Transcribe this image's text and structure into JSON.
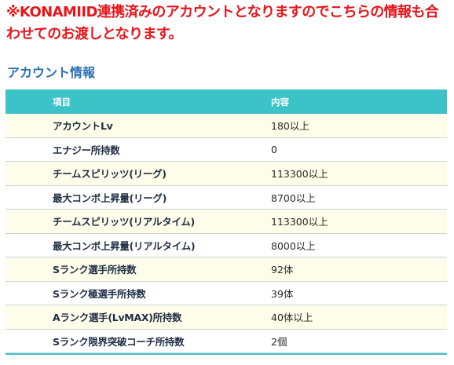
{
  "notice": "※KONAMIID連携済みのアカウントとなりますのでこちらの情報も合わせてのお渡しとなります。",
  "section_title": "アカウント情報",
  "table": {
    "headers": {
      "item": "項目",
      "value": "内容"
    },
    "rows": [
      {
        "item": "アカウントLv",
        "value": "180以上"
      },
      {
        "item": "エナジー所持数",
        "value": "0"
      },
      {
        "item": "チームスピリッツ(リーグ)",
        "value": "113300以上"
      },
      {
        "item": "最大コンボ上昇量(リーグ)",
        "value": "8700以上"
      },
      {
        "item": "チームスピリッツ(リアルタイム)",
        "value": "113300以上"
      },
      {
        "item": "最大コンボ上昇量(リアルタイム)",
        "value": "8000以上"
      },
      {
        "item": "Sランク選手所持数",
        "value": "92体"
      },
      {
        "item": "Sランク極選手所持数",
        "value": "39体"
      },
      {
        "item": "Aランク選手(LvMAX)所持数",
        "value": "40体以上"
      },
      {
        "item": "Sランク限界突破コーチ所持数",
        "value": "2個"
      }
    ]
  },
  "colors": {
    "notice": "#e8151b",
    "title": "#2d6fb3",
    "header_bg": "#3cc3c8",
    "odd_row_bg": "#fdfde9",
    "even_row_bg": "#ffffff"
  }
}
